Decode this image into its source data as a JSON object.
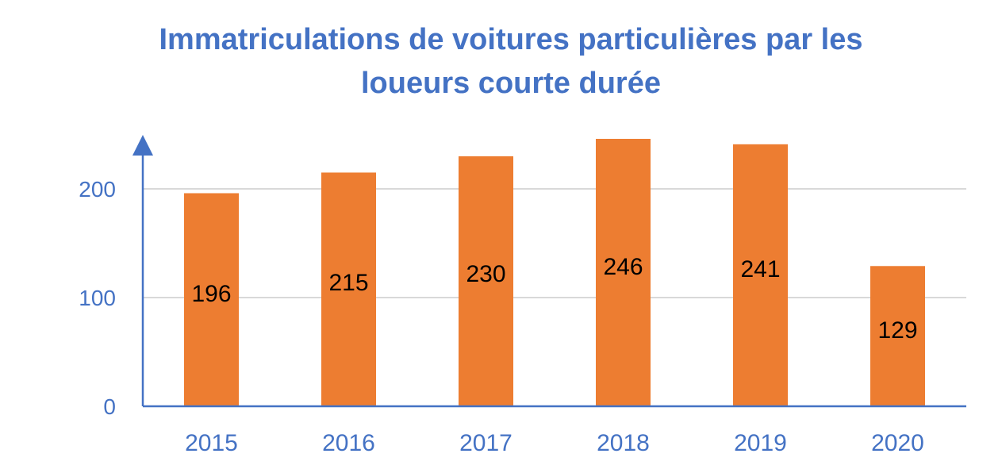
{
  "chart_data": {
    "type": "bar",
    "title": "Immatriculations de voitures particulières par les loueurs courte durée",
    "title_lines": [
      "Immatriculations de voitures particulières par les",
      "loueurs courte durée"
    ],
    "categories": [
      "2015",
      "2016",
      "2017",
      "2018",
      "2019",
      "2020"
    ],
    "values": [
      196,
      215,
      230,
      246,
      241,
      129
    ],
    "data_labels": [
      "196",
      "215",
      "230",
      "246",
      "241",
      "129"
    ],
    "yticks": [
      "0",
      "100",
      "200"
    ],
    "ylim": [
      0,
      250
    ],
    "xlabel": "",
    "ylabel": "",
    "grid": true,
    "legend": "none",
    "colors": {
      "bar": "#ED7D31",
      "axis": "#4472C4",
      "text": "#4472C4",
      "grid": "#D9D9D9",
      "label": "#000000"
    }
  }
}
